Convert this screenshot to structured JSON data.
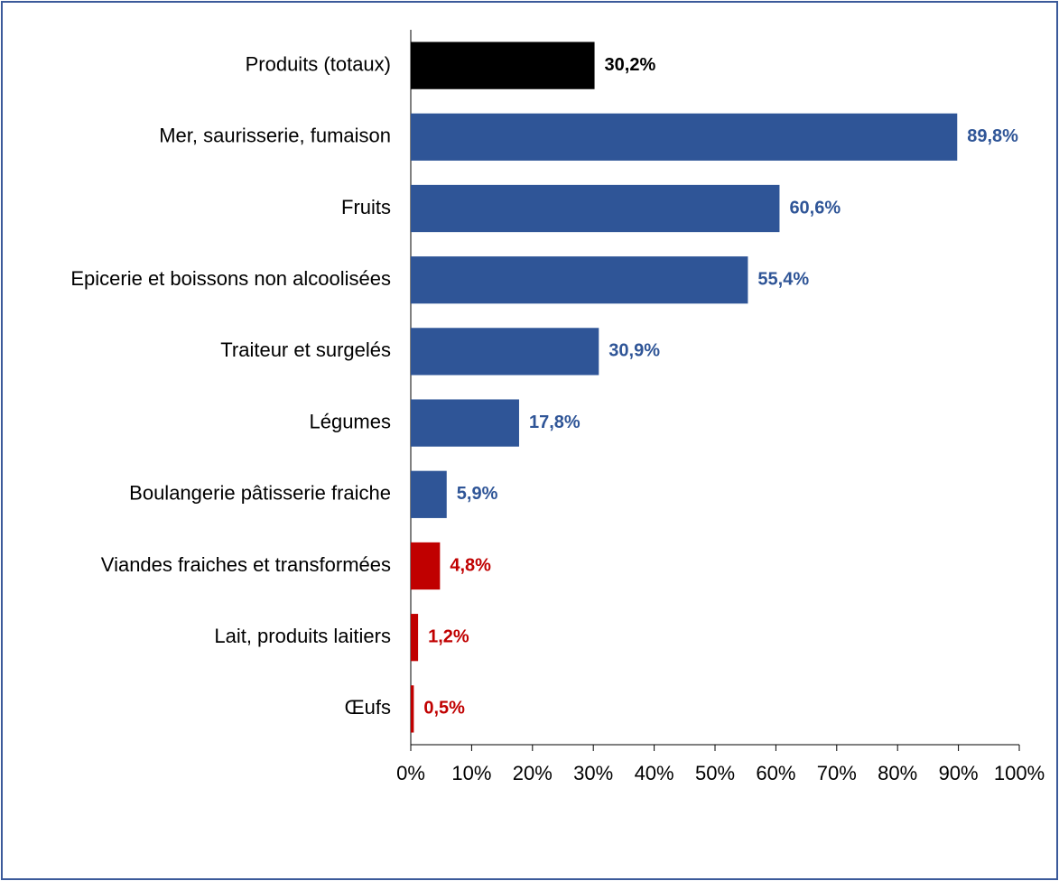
{
  "chart_data": {
    "type": "bar",
    "orientation": "horizontal",
    "categories": [
      "Produits (totaux)",
      "Mer, saurisserie, fumaison",
      "Fruits",
      "Epicerie et boissons non alcoolisées",
      "Traiteur et surgelés",
      "Légumes",
      "Boulangerie pâtisserie fraiche",
      "Viandes fraiches et transformées",
      "Lait, produits laitiers",
      "Œufs"
    ],
    "values": [
      30.2,
      89.8,
      60.6,
      55.4,
      30.9,
      17.8,
      5.9,
      4.8,
      1.2,
      0.5
    ],
    "value_labels": [
      "30,2%",
      "89,8%",
      "60,6%",
      "55,4%",
      "30,9%",
      "17,8%",
      "5,9%",
      "4,8%",
      "1,2%",
      "0,5%"
    ],
    "colors": [
      "#000000",
      "#2f5597",
      "#2f5597",
      "#2f5597",
      "#2f5597",
      "#2f5597",
      "#2f5597",
      "#c00000",
      "#c00000",
      "#c00000"
    ],
    "xlim": [
      0,
      100
    ],
    "xticks": [
      {
        "value": 0,
        "label": "0%"
      },
      {
        "value": 10,
        "label": "10%"
      },
      {
        "value": 20,
        "label": "20%"
      },
      {
        "value": 30,
        "label": "30%"
      },
      {
        "value": 40,
        "label": "40%"
      },
      {
        "value": 50,
        "label": "50%"
      },
      {
        "value": 60,
        "label": "60%"
      },
      {
        "value": 70,
        "label": "70%"
      },
      {
        "value": 80,
        "label": "80%"
      },
      {
        "value": 90,
        "label": "90%"
      },
      {
        "value": 100,
        "label": "100%"
      }
    ],
    "grid": false
  }
}
